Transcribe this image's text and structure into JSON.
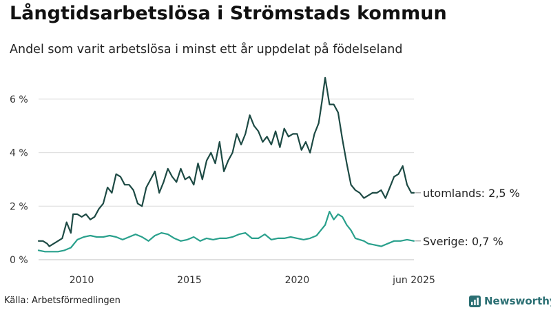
{
  "header": {
    "title": "Långtidsarbetslösa i Strömstads kommun",
    "subtitle": "Andel som varit arbetslösa i minst ett år uppdelat på födelseland"
  },
  "footer": {
    "source": "Källa: Arbetsförmedlingen",
    "brand": "Newsworthy"
  },
  "colors": {
    "foreign": "#1d4a44",
    "sweden": "#29a08c",
    "grid": "#dcdcdc",
    "brand": "#2b6f73"
  },
  "chart_data": {
    "type": "line",
    "title": "Långtidsarbetslösa i Strömstads kommun",
    "subtitle": "Andel som varit arbetslösa i minst ett år uppdelat på födelseland",
    "xlabel": "",
    "ylabel": "",
    "xlim": [
      2008.0,
      2025.42
    ],
    "ylim": [
      0,
      7
    ],
    "grid": true,
    "y_ticks": [
      {
        "value": 0,
        "label": "0 %"
      },
      {
        "value": 2,
        "label": "2 %"
      },
      {
        "value": 4,
        "label": "4 %"
      },
      {
        "value": 6,
        "label": "6 %"
      }
    ],
    "x_ticks": [
      {
        "value": 2010,
        "label": "2010"
      },
      {
        "value": 2015,
        "label": "2015"
      },
      {
        "value": 2020,
        "label": "2020"
      },
      {
        "value": 2025.42,
        "label": "jun 2025"
      }
    ],
    "series": [
      {
        "name": "utomlands",
        "end_label": "utomlands: 2,5 %",
        "color": "#1d4a44",
        "x": [
          2008.0,
          2008.2,
          2008.4,
          2008.5,
          2008.7,
          2008.9,
          2009.1,
          2009.3,
          2009.5,
          2009.6,
          2009.8,
          2010.0,
          2010.2,
          2010.4,
          2010.6,
          2010.8,
          2011.0,
          2011.2,
          2011.4,
          2011.6,
          2011.8,
          2012.0,
          2012.2,
          2012.4,
          2012.6,
          2012.8,
          2013.0,
          2013.2,
          2013.4,
          2013.6,
          2013.8,
          2014.0,
          2014.2,
          2014.4,
          2014.6,
          2014.8,
          2015.0,
          2015.2,
          2015.4,
          2015.6,
          2015.8,
          2016.0,
          2016.2,
          2016.4,
          2016.6,
          2016.8,
          2017.0,
          2017.2,
          2017.4,
          2017.6,
          2017.8,
          2018.0,
          2018.2,
          2018.4,
          2018.6,
          2018.8,
          2019.0,
          2019.2,
          2019.4,
          2019.6,
          2019.8,
          2020.0,
          2020.2,
          2020.4,
          2020.6,
          2020.8,
          2021.0,
          2021.15,
          2021.3,
          2021.5,
          2021.7,
          2021.9,
          2022.1,
          2022.3,
          2022.5,
          2022.7,
          2022.9,
          2023.1,
          2023.3,
          2023.5,
          2023.7,
          2023.9,
          2024.1,
          2024.3,
          2024.5,
          2024.7,
          2024.9,
          2025.1,
          2025.3,
          2025.42
        ],
        "y": [
          0.7,
          0.7,
          0.6,
          0.5,
          0.6,
          0.7,
          0.8,
          1.4,
          1.0,
          1.7,
          1.7,
          1.6,
          1.7,
          1.5,
          1.6,
          1.9,
          2.1,
          2.7,
          2.5,
          3.2,
          3.1,
          2.8,
          2.8,
          2.6,
          2.1,
          2.0,
          2.7,
          3.0,
          3.3,
          2.5,
          2.9,
          3.4,
          3.1,
          2.9,
          3.4,
          3.0,
          3.1,
          2.8,
          3.6,
          3.0,
          3.7,
          4.0,
          3.6,
          4.4,
          3.3,
          3.7,
          4.0,
          4.7,
          4.3,
          4.7,
          5.4,
          5.0,
          4.8,
          4.4,
          4.6,
          4.3,
          4.8,
          4.2,
          4.9,
          4.6,
          4.7,
          4.7,
          4.1,
          4.4,
          4.0,
          4.7,
          5.1,
          5.9,
          6.8,
          5.8,
          5.8,
          5.5,
          4.5,
          3.6,
          2.8,
          2.6,
          2.5,
          2.3,
          2.4,
          2.5,
          2.5,
          2.6,
          2.3,
          2.7,
          3.1,
          3.2,
          3.5,
          2.8,
          2.5,
          2.5
        ]
      },
      {
        "name": "Sverige",
        "end_label": "Sverige: 0,7 %",
        "color": "#29a08c",
        "x": [
          2008.0,
          2008.3,
          2008.6,
          2008.9,
          2009.2,
          2009.5,
          2009.8,
          2010.1,
          2010.4,
          2010.7,
          2011.0,
          2011.3,
          2011.6,
          2011.9,
          2012.2,
          2012.5,
          2012.8,
          2013.1,
          2013.4,
          2013.7,
          2014.0,
          2014.3,
          2014.6,
          2014.9,
          2015.2,
          2015.5,
          2015.8,
          2016.1,
          2016.4,
          2016.7,
          2017.0,
          2017.3,
          2017.6,
          2017.9,
          2018.2,
          2018.5,
          2018.8,
          2019.1,
          2019.4,
          2019.7,
          2020.0,
          2020.3,
          2020.6,
          2020.9,
          2021.1,
          2021.3,
          2021.5,
          2021.7,
          2021.9,
          2022.1,
          2022.3,
          2022.5,
          2022.7,
          2022.9,
          2023.1,
          2023.3,
          2023.6,
          2023.9,
          2024.2,
          2024.5,
          2024.8,
          2025.1,
          2025.42
        ],
        "y": [
          0.35,
          0.3,
          0.3,
          0.3,
          0.35,
          0.45,
          0.75,
          0.85,
          0.9,
          0.85,
          0.85,
          0.9,
          0.85,
          0.75,
          0.85,
          0.95,
          0.85,
          0.7,
          0.9,
          1.0,
          0.95,
          0.8,
          0.7,
          0.75,
          0.85,
          0.7,
          0.8,
          0.75,
          0.8,
          0.8,
          0.85,
          0.95,
          1.0,
          0.8,
          0.8,
          0.95,
          0.75,
          0.8,
          0.8,
          0.85,
          0.8,
          0.75,
          0.8,
          0.9,
          1.1,
          1.3,
          1.8,
          1.5,
          1.7,
          1.6,
          1.3,
          1.1,
          0.8,
          0.75,
          0.7,
          0.6,
          0.55,
          0.5,
          0.6,
          0.7,
          0.7,
          0.75,
          0.7
        ]
      }
    ]
  }
}
